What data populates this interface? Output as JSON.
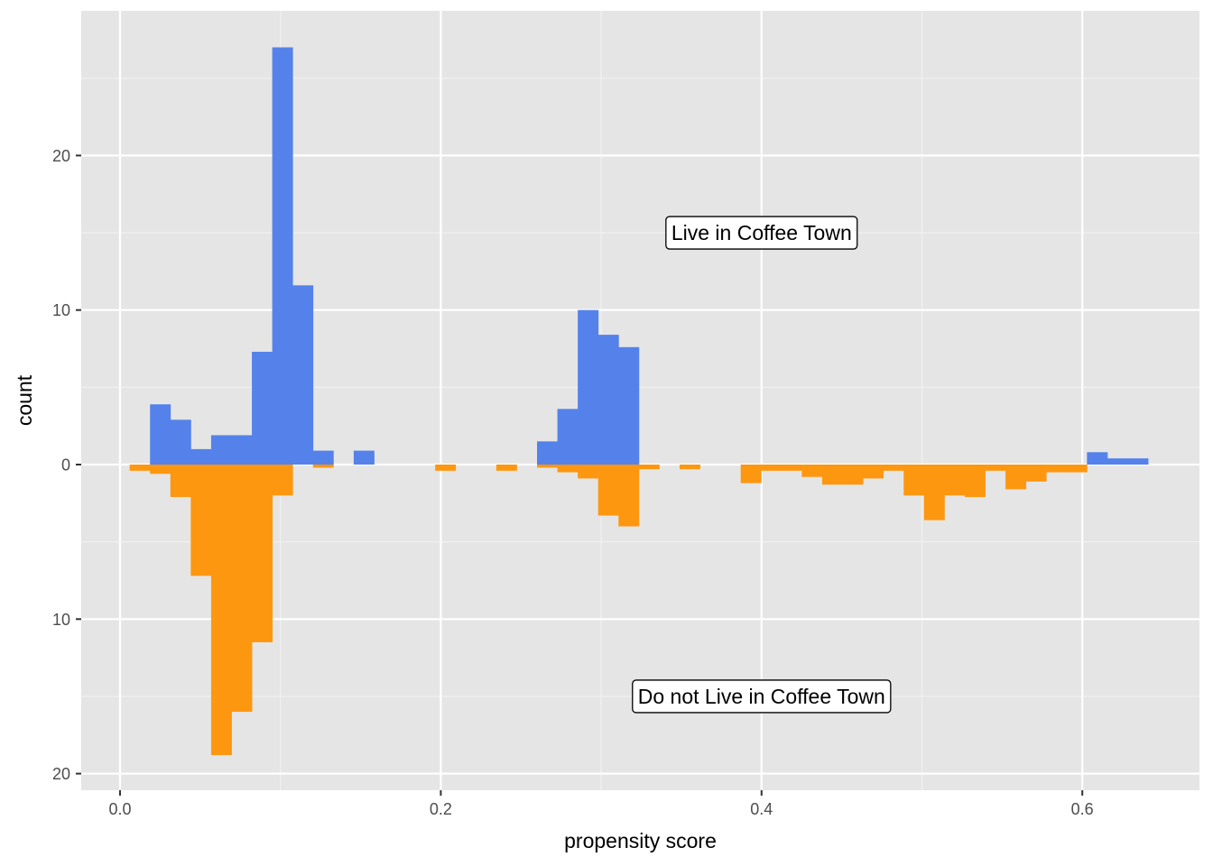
{
  "chart_data": {
    "type": "bar",
    "subtype": "mirrored-histogram",
    "title": "",
    "xlabel": "propensity score",
    "ylabel": "count",
    "xlim": [
      -0.026,
      0.664
    ],
    "ylim": [
      -21.0,
      28.5
    ],
    "x_ticks": [
      0.0,
      0.2,
      0.4,
      0.6
    ],
    "x_tick_labels": [
      "0.0",
      "0.2",
      "0.4",
      "0.6"
    ],
    "y_ticks": [
      20,
      10,
      0,
      -10,
      -20
    ],
    "y_tick_labels": [
      "20",
      "10",
      "0",
      "10",
      "20"
    ],
    "bin_width": 0.0127,
    "grid": true,
    "background": "#e5e5e5",
    "annotations": [
      {
        "text": "Live in Coffee Town",
        "x": 0.4,
        "y": 15
      },
      {
        "text": "Do not Live in Coffee Town",
        "x": 0.4,
        "y": -15
      }
    ],
    "series": [
      {
        "group": "top",
        "color": "#5482ea",
        "bins": [
          {
            "x0": 0.0187,
            "count": 3.9
          },
          {
            "x0": 0.0314,
            "count": 2.9
          },
          {
            "x0": 0.0441,
            "count": 1.0
          },
          {
            "x0": 0.0568,
            "count": 1.9
          },
          {
            "x0": 0.0695,
            "count": 1.9
          },
          {
            "x0": 0.0822,
            "count": 7.3
          },
          {
            "x0": 0.0949,
            "count": 27.0
          },
          {
            "x0": 0.1076,
            "count": 11.6
          },
          {
            "x0": 0.1203,
            "count": 0.9
          },
          {
            "x0": 0.1457,
            "count": 0.9
          },
          {
            "x0": 0.26,
            "count": 1.5
          },
          {
            "x0": 0.2727,
            "count": 3.6
          },
          {
            "x0": 0.2854,
            "count": 10.0
          },
          {
            "x0": 0.2981,
            "count": 8.4
          },
          {
            "x0": 0.3108,
            "count": 7.6
          },
          {
            "x0": 0.6029,
            "count": 0.8
          },
          {
            "x0": 0.6156,
            "count": 0.4
          },
          {
            "x0": 0.6283,
            "count": 0.4
          }
        ]
      },
      {
        "group": "bottom",
        "color": "#fe9710",
        "bins": [
          {
            "x0": 0.006,
            "count": 0.4
          },
          {
            "x0": 0.0187,
            "count": 0.6
          },
          {
            "x0": 0.0314,
            "count": 2.1
          },
          {
            "x0": 0.0441,
            "count": 7.2
          },
          {
            "x0": 0.0568,
            "count": 18.8
          },
          {
            "x0": 0.0695,
            "count": 16.0
          },
          {
            "x0": 0.0822,
            "count": 11.5
          },
          {
            "x0": 0.0949,
            "count": 2.0
          },
          {
            "x0": 0.1203,
            "count": 0.2
          },
          {
            "x0": 0.1965,
            "count": 0.4
          },
          {
            "x0": 0.2346,
            "count": 0.4
          },
          {
            "x0": 0.26,
            "count": 0.2
          },
          {
            "x0": 0.2727,
            "count": 0.5
          },
          {
            "x0": 0.2854,
            "count": 0.9
          },
          {
            "x0": 0.2981,
            "count": 3.3
          },
          {
            "x0": 0.3108,
            "count": 4.0
          },
          {
            "x0": 0.3235,
            "count": 0.3
          },
          {
            "x0": 0.3489,
            "count": 0.3
          },
          {
            "x0": 0.387,
            "count": 1.2
          },
          {
            "x0": 0.3997,
            "count": 0.4
          },
          {
            "x0": 0.4124,
            "count": 0.4
          },
          {
            "x0": 0.4251,
            "count": 0.8
          },
          {
            "x0": 0.4378,
            "count": 1.3
          },
          {
            "x0": 0.4505,
            "count": 1.3
          },
          {
            "x0": 0.4632,
            "count": 0.9
          },
          {
            "x0": 0.4759,
            "count": 0.4
          },
          {
            "x0": 0.4886,
            "count": 2.0
          },
          {
            "x0": 0.5013,
            "count": 3.6
          },
          {
            "x0": 0.514,
            "count": 2.0
          },
          {
            "x0": 0.5267,
            "count": 2.1
          },
          {
            "x0": 0.5394,
            "count": 0.4
          },
          {
            "x0": 0.5521,
            "count": 1.6
          },
          {
            "x0": 0.5648,
            "count": 1.1
          },
          {
            "x0": 0.5775,
            "count": 0.5
          },
          {
            "x0": 0.5902,
            "count": 0.5
          }
        ]
      }
    ]
  }
}
